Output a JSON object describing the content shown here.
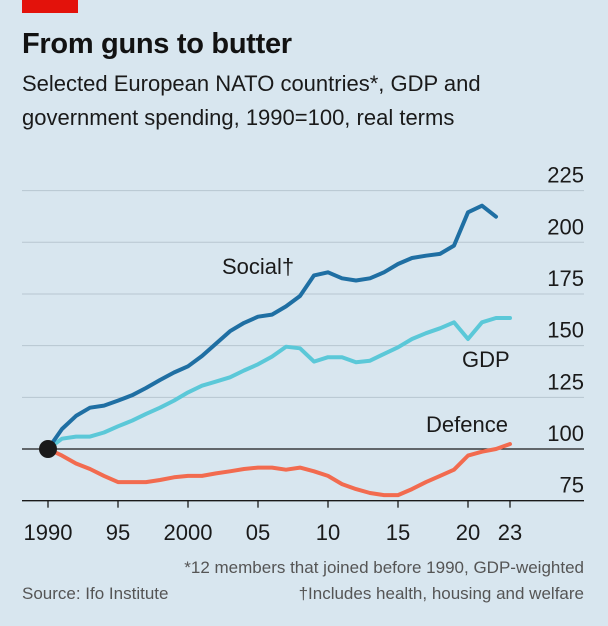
{
  "header": {
    "title": "From guns to butter",
    "subtitle_line1": "Selected European NATO countries*, GDP and",
    "subtitle_line2": "government spending, 1990=100, real terms"
  },
  "footer": {
    "note1": "*12 members that joined before 1990, GDP-weighted",
    "source": "Source: Ifo Institute",
    "note2": "†Includes health, housing and welfare"
  },
  "chart_data": {
    "type": "line",
    "title": "From guns to butter",
    "subtitle": "Selected European NATO countries*, GDP and government spending, 1990=100, real terms",
    "ylim": [
      75,
      225
    ],
    "xlim": [
      1990,
      2023
    ],
    "y_ticks": [
      75,
      100,
      125,
      150,
      175,
      200,
      225
    ],
    "y_tick_labels": [
      "75",
      "100",
      "125",
      "150",
      "175",
      "200",
      "225"
    ],
    "x_ticks": [
      1990,
      1995,
      2000,
      2005,
      2010,
      2015,
      2020,
      2023
    ],
    "x_tick_labels": [
      "1990",
      "95",
      "2000",
      "05",
      "10",
      "15",
      "20",
      "23"
    ],
    "grid": "horizontal",
    "y_axis_side": "right",
    "baseline": 100,
    "series": [
      {
        "name": "Social†",
        "color": "#1f6fa3",
        "x": [
          1990,
          1991,
          1992,
          1993,
          1994,
          1995,
          1996,
          1997,
          1998,
          1999,
          2000,
          2001,
          2002,
          2003,
          2004,
          2005,
          2006,
          2007,
          2008,
          2009,
          2010,
          2011,
          2012,
          2013,
          2014,
          2015,
          2016,
          2017,
          2018,
          2019,
          2020,
          2021,
          2022
        ],
        "values": [
          100,
          109.7,
          116,
          120,
          121,
          123.4,
          126,
          129.5,
          133.4,
          137,
          140,
          145,
          151,
          157,
          161,
          164,
          165,
          169,
          174,
          184,
          185.5,
          182.6,
          181.5,
          182.6,
          185.5,
          189.5,
          192.4,
          193.5,
          194.4,
          198.4,
          214.5,
          217.7,
          212.4
        ]
      },
      {
        "name": "GDP",
        "color": "#5bc8d8",
        "x": [
          1990,
          1991,
          1992,
          1993,
          1994,
          1995,
          1996,
          1997,
          1998,
          1999,
          2000,
          2001,
          2002,
          2003,
          2004,
          2005,
          2006,
          2007,
          2008,
          2009,
          2010,
          2011,
          2012,
          2013,
          2014,
          2015,
          2016,
          2017,
          2018,
          2019,
          2020,
          2021,
          2022,
          2023
        ],
        "values": [
          100,
          105,
          106,
          106,
          108,
          111,
          113.7,
          117,
          120,
          123.4,
          127.4,
          130.6,
          132.6,
          134.7,
          138,
          141,
          144.7,
          149.5,
          148.7,
          142.3,
          144.4,
          144.4,
          142,
          142.7,
          146,
          149.2,
          153.2,
          156,
          158.4,
          161.3,
          153.2,
          161.3,
          163.4,
          163.4
        ]
      },
      {
        "name": "Defence",
        "color": "#f26b4f",
        "x": [
          1990,
          1991,
          1992,
          1993,
          1994,
          1995,
          1996,
          1997,
          1998,
          1999,
          2000,
          2001,
          2002,
          2003,
          2004,
          2005,
          2006,
          2007,
          2008,
          2009,
          2010,
          2011,
          2012,
          2013,
          2014,
          2015,
          2016,
          2017,
          2018,
          2019,
          2020,
          2021,
          2022,
          2023
        ],
        "values": [
          100,
          96.8,
          93,
          90.3,
          87,
          84,
          84,
          84,
          85,
          86.3,
          87,
          87,
          88.2,
          89.2,
          90.3,
          91,
          91,
          90,
          91,
          89.2,
          87,
          83,
          80.6,
          78.7,
          77.7,
          77.7,
          80.6,
          84,
          87,
          90,
          96.8,
          98.7,
          100,
          102.4
        ]
      }
    ]
  }
}
